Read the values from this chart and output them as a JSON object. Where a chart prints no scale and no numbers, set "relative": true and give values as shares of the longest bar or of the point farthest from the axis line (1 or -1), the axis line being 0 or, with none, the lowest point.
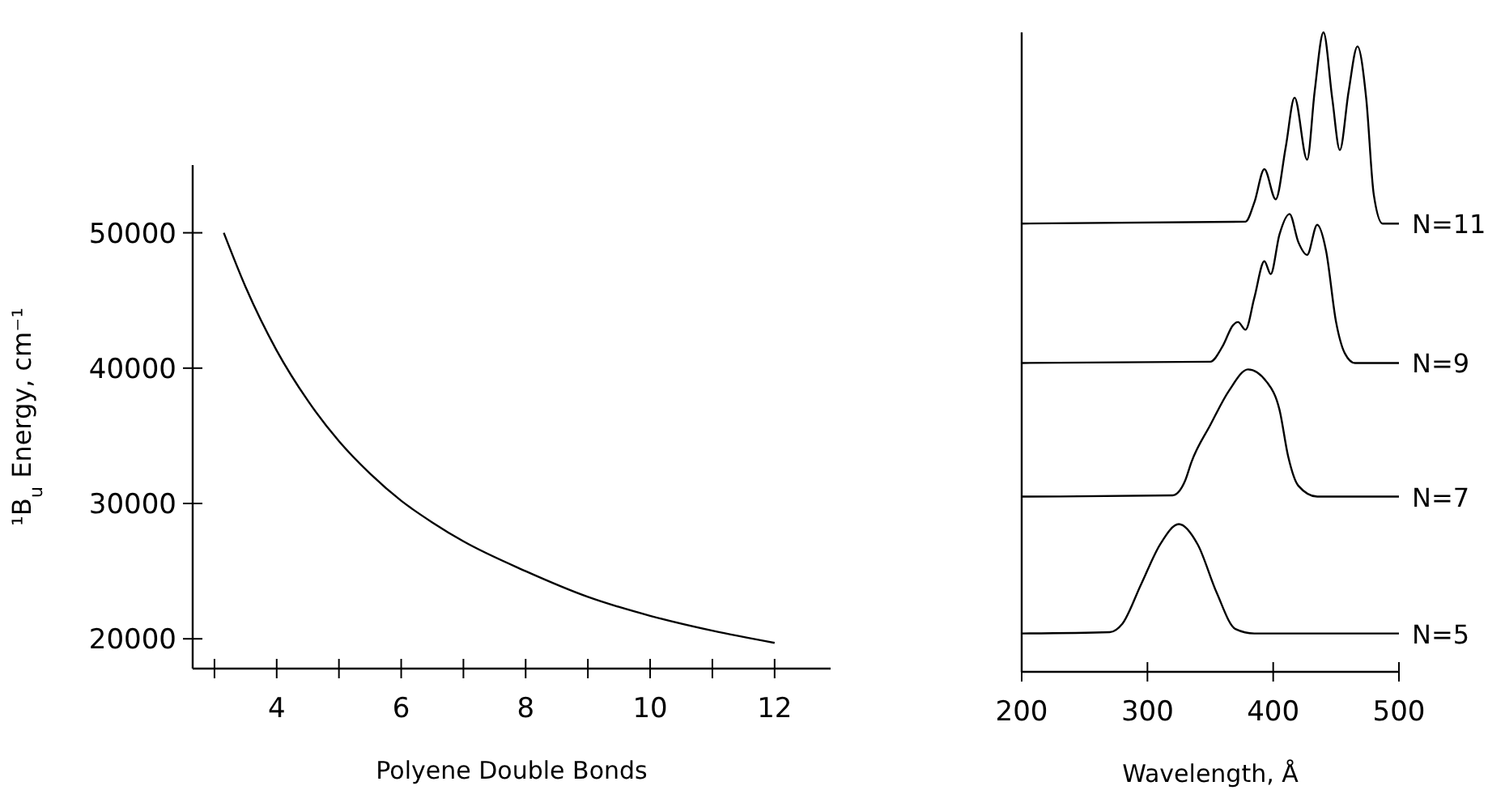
{
  "chart_data": [
    {
      "type": "line",
      "xlabel": "Polyene Double Bonds",
      "ylabel": "¹B$_{u}$ Energy, cm⁻¹",
      "xlim": [
        2.65,
        12.9
      ],
      "ylim": [
        17800,
        55000
      ],
      "xticks": [
        {
          "value": 3,
          "label": null
        },
        4,
        {
          "value": 5,
          "label": null
        },
        6,
        {
          "value": 7,
          "label": null
        },
        8,
        {
          "value": 9,
          "label": null
        },
        10,
        {
          "value": 11,
          "label": null
        },
        12
      ],
      "yticks": [
        20000,
        30000,
        40000,
        50000
      ],
      "grid": false,
      "marker": "none",
      "line_style": "solid",
      "series": [
        {
          "color": "#000000",
          "x": [
            3.15,
            3.5,
            4,
            4.5,
            5,
            5.5,
            6,
            6.5,
            7,
            8,
            9,
            10,
            11,
            12
          ],
          "values": [
            50000,
            46000,
            41300,
            37600,
            34600,
            32200,
            30200,
            28600,
            27200,
            25000,
            23100,
            21700,
            20600,
            19700
          ]
        }
      ]
    },
    {
      "type": "line",
      "xlabel": "Wavelength, Å",
      "xlim": [
        200,
        500
      ],
      "xticks": [
        200,
        300,
        400,
        500
      ],
      "relative": true,
      "grid": false,
      "marker": "none",
      "line_style": "solid",
      "series": [
        {
          "name": "N=5",
          "color": "#000000",
          "x": [
            200,
            270,
            280,
            295,
            310,
            325,
            340,
            355,
            370,
            385,
            500
          ],
          "values": [
            0.06,
            0.062,
            0.075,
            0.137,
            0.199,
            0.231,
            0.199,
            0.124,
            0.067,
            0.06,
            0.06
          ]
        },
        {
          "name": "N=7",
          "color": "#000000",
          "x": [
            200,
            320,
            330,
            335,
            350,
            365,
            380,
            395,
            405,
            412,
            420,
            435,
            500
          ],
          "values": [
            0.274,
            0.276,
            0.299,
            0.328,
            0.386,
            0.44,
            0.473,
            0.453,
            0.41,
            0.336,
            0.291,
            0.274,
            0.274
          ]
        },
        {
          "name": "N=9",
          "color": "#000000",
          "x": [
            200,
            350,
            360,
            368,
            372,
            378,
            385,
            393,
            398,
            405,
            413,
            420,
            427,
            435,
            442,
            450,
            457,
            465,
            500
          ],
          "values": [
            0.483,
            0.485,
            0.51,
            0.542,
            0.547,
            0.535,
            0.585,
            0.642,
            0.622,
            0.684,
            0.716,
            0.672,
            0.652,
            0.699,
            0.659,
            0.547,
            0.498,
            0.483,
            0.483
          ]
        },
        {
          "name": "N=11",
          "color": "#000000",
          "x": [
            200,
            378,
            385,
            393,
            402,
            410,
            417,
            427,
            433,
            440,
            447,
            453,
            460,
            467,
            474,
            480,
            487,
            500
          ],
          "values": [
            0.701,
            0.704,
            0.734,
            0.786,
            0.739,
            0.821,
            0.898,
            0.801,
            0.908,
            1.0,
            0.896,
            0.816,
            0.908,
            0.978,
            0.896,
            0.746,
            0.701,
            0.701
          ]
        }
      ]
    }
  ]
}
